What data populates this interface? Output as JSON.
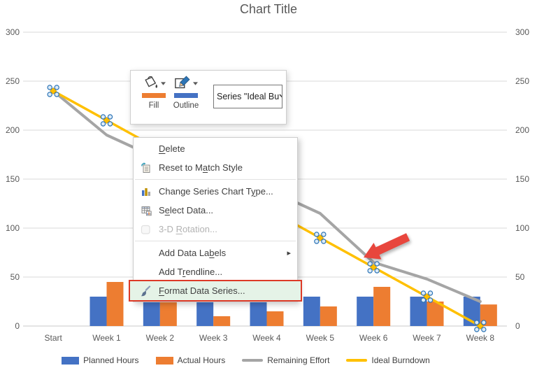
{
  "chart_title": "Chart Title",
  "chart_data": {
    "type": "combo",
    "title": "Chart Title",
    "categories": [
      "Start",
      "Week 1",
      "Week 2",
      "Week 3",
      "Week 4",
      "Week 5",
      "Week 6",
      "Week 7",
      "Week 8"
    ],
    "series": [
      {
        "name": "Planned Hours",
        "type": "bar",
        "color": "#4472C4",
        "values": [
          null,
          30,
          30,
          30,
          30,
          30,
          30,
          30,
          30
        ]
      },
      {
        "name": "Actual Hours",
        "type": "bar",
        "color": "#ED7D31",
        "values": [
          null,
          45,
          30,
          10,
          15,
          20,
          40,
          25,
          22
        ]
      },
      {
        "name": "Remaining Effort",
        "type": "line",
        "color": "#A5A5A5",
        "values": [
          240,
          195,
          170,
          150,
          140,
          115,
          65,
          48,
          25
        ]
      },
      {
        "name": "Ideal Burndown",
        "type": "line",
        "color": "#FFC000",
        "values": [
          240,
          210,
          180,
          150,
          120,
          90,
          60,
          30,
          0
        ],
        "selected": true
      }
    ],
    "ylim": [
      0,
      300
    ],
    "yticks": [
      0,
      50,
      100,
      150,
      200,
      250,
      300
    ],
    "secondary_axis": true,
    "grid": true,
    "legend_position": "bottom"
  },
  "mini_toolbar": {
    "fill_label": "Fill",
    "outline_label": "Outline",
    "fill_swatch_color": "#ED7D31",
    "outline_swatch_color": "#4472C4",
    "series_selector": "Series \"Ideal Bu"
  },
  "context_menu": {
    "items": [
      {
        "name": "delete",
        "pre": "",
        "key": "D",
        "post": "elete"
      },
      {
        "name": "reset-to-match-style",
        "pre": "Reset to M",
        "key": "a",
        "post": "tch Style",
        "icon": "reset-style-icon",
        "separator_after": true
      },
      {
        "name": "change-series-chart-type",
        "pre": "Change Series Chart T",
        "key": "y",
        "post": "pe...",
        "icon": "chart-type-icon"
      },
      {
        "name": "select-data",
        "pre": "S",
        "key": "e",
        "post": "lect Data...",
        "icon": "select-data-icon"
      },
      {
        "name": "3d-rotation",
        "pre": "3-D ",
        "key": "R",
        "post": "otation...",
        "icon": "cube-icon",
        "disabled": true,
        "separator_after": true
      },
      {
        "name": "add-data-labels",
        "pre": "Add Data La",
        "key": "b",
        "post": "els",
        "submenu": true
      },
      {
        "name": "add-trendline",
        "pre": "Add T",
        "key": "r",
        "post": "endline..."
      },
      {
        "name": "format-data-series",
        "pre": "",
        "key": "F",
        "post": "ormat Data Series...",
        "icon": "format-painter-icon",
        "highlighted": true
      }
    ]
  },
  "annotations": {
    "arrow_color": "#E8463D",
    "highlight_bg": "#E5F3E7",
    "highlight_border": "#DD3A27"
  }
}
